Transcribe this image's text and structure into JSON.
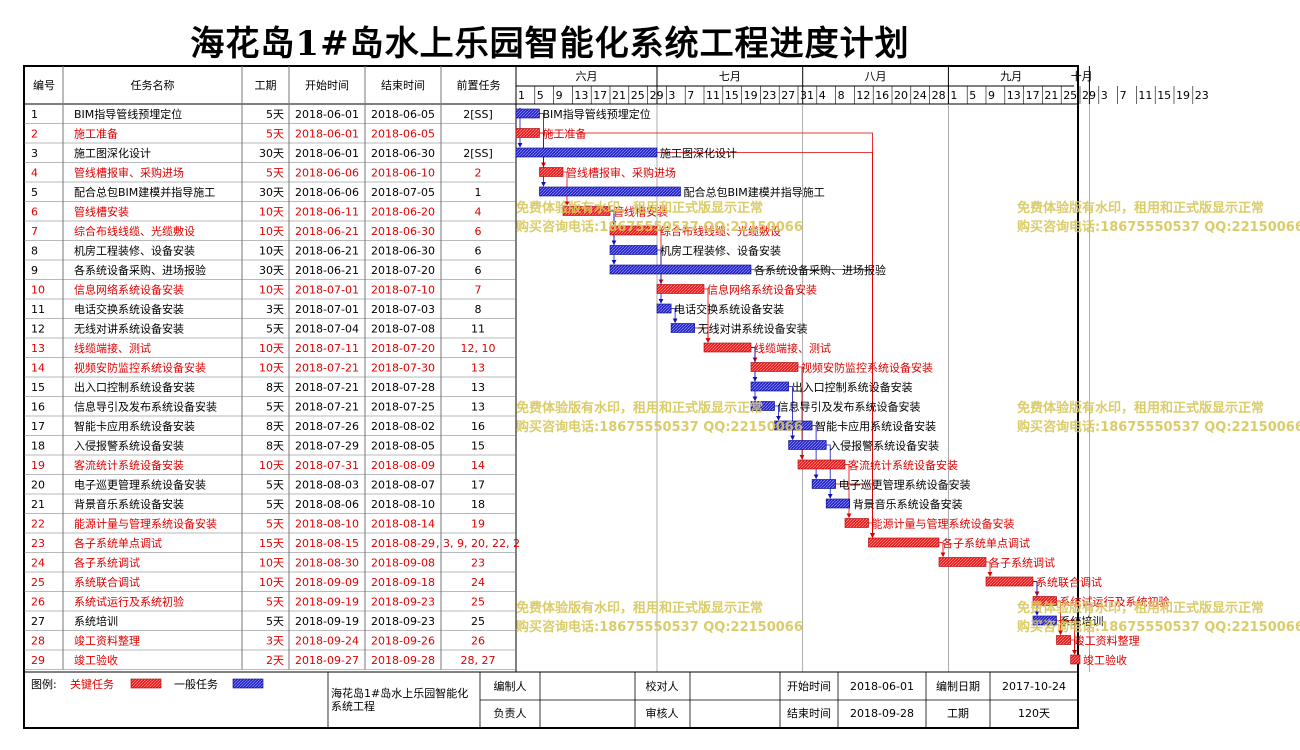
{
  "title": "海花岛1#岛水上乐园智能化系统工程进度计划",
  "colors": {
    "critical": "#e00000",
    "normal": "#1010c0",
    "watermark": "#d8c75a"
  },
  "columns": [
    "编号",
    "任务名称",
    "工期",
    "开始时间",
    "结束时间",
    "前置任务"
  ],
  "months": [
    "六月",
    "七月",
    "八月",
    "九月",
    "十月"
  ],
  "day_ticks": [
    [
      "1",
      "5",
      "9",
      "13",
      "17",
      "21",
      "25",
      "29"
    ],
    [
      "3",
      "7",
      "11",
      "15",
      "19",
      "23",
      "27",
      "31"
    ],
    [
      "4",
      "8",
      "12",
      "16",
      "20",
      "24",
      "28"
    ],
    [
      "1",
      "5",
      "9",
      "13",
      "17",
      "21",
      "25",
      "29"
    ],
    [
      "3",
      "7",
      "11",
      "15",
      "19",
      "23"
    ]
  ],
  "chart_data": {
    "type": "gantt",
    "timeline_start": "2018-06-01",
    "timeline_end": "2018-10-26",
    "tasks": [
      {
        "id": "1",
        "name": "BIM指导管线预埋定位",
        "duration": "5天",
        "start": "2018-06-01",
        "end": "2018-06-05",
        "pred": "2[SS]",
        "critical": false
      },
      {
        "id": "2",
        "name": "施工准备",
        "duration": "5天",
        "start": "2018-06-01",
        "end": "2018-06-05",
        "pred": "",
        "critical": true
      },
      {
        "id": "3",
        "name": "施工图深化设计",
        "duration": "30天",
        "start": "2018-06-01",
        "end": "2018-06-30",
        "pred": "2[SS]",
        "critical": false
      },
      {
        "id": "4",
        "name": "管线槽报审、采购进场",
        "duration": "5天",
        "start": "2018-06-06",
        "end": "2018-06-10",
        "pred": "2",
        "critical": true
      },
      {
        "id": "5",
        "name": "配合总包BIM建模并指导施工",
        "duration": "30天",
        "start": "2018-06-06",
        "end": "2018-07-05",
        "pred": "1",
        "critical": false
      },
      {
        "id": "6",
        "name": "管线槽安装",
        "duration": "10天",
        "start": "2018-06-11",
        "end": "2018-06-20",
        "pred": "4",
        "critical": true
      },
      {
        "id": "7",
        "name": "综合布线线缆、光缆敷设",
        "duration": "10天",
        "start": "2018-06-21",
        "end": "2018-06-30",
        "pred": "6",
        "critical": true
      },
      {
        "id": "8",
        "name": "机房工程装修、设备安装",
        "duration": "10天",
        "start": "2018-06-21",
        "end": "2018-06-30",
        "pred": "6",
        "critical": false
      },
      {
        "id": "9",
        "name": "各系统设备采购、进场报验",
        "duration": "30天",
        "start": "2018-06-21",
        "end": "2018-07-20",
        "pred": "6",
        "critical": false
      },
      {
        "id": "10",
        "name": "信息网络系统设备安装",
        "duration": "10天",
        "start": "2018-07-01",
        "end": "2018-07-10",
        "pred": "7",
        "critical": true
      },
      {
        "id": "11",
        "name": "电话交换系统设备安装",
        "duration": "3天",
        "start": "2018-07-01",
        "end": "2018-07-03",
        "pred": "8",
        "critical": false
      },
      {
        "id": "12",
        "name": "无线对讲系统设备安装",
        "duration": "5天",
        "start": "2018-07-04",
        "end": "2018-07-08",
        "pred": "11",
        "critical": false
      },
      {
        "id": "13",
        "name": "线缆端接、测试",
        "duration": "10天",
        "start": "2018-07-11",
        "end": "2018-07-20",
        "pred": "12, 10",
        "critical": true
      },
      {
        "id": "14",
        "name": "视频安防监控系统设备安装",
        "duration": "10天",
        "start": "2018-07-21",
        "end": "2018-07-30",
        "pred": "13",
        "critical": true
      },
      {
        "id": "15",
        "name": "出入口控制系统设备安装",
        "duration": "8天",
        "start": "2018-07-21",
        "end": "2018-07-28",
        "pred": "13",
        "critical": false
      },
      {
        "id": "16",
        "name": "信息导引及发布系统设备安装",
        "duration": "5天",
        "start": "2018-07-21",
        "end": "2018-07-25",
        "pred": "13",
        "critical": false
      },
      {
        "id": "17",
        "name": "智能卡应用系统设备安装",
        "duration": "8天",
        "start": "2018-07-26",
        "end": "2018-08-02",
        "pred": "16",
        "critical": false
      },
      {
        "id": "18",
        "name": "入侵报警系统设备安装",
        "duration": "8天",
        "start": "2018-07-29",
        "end": "2018-08-05",
        "pred": "15",
        "critical": false
      },
      {
        "id": "19",
        "name": "客流统计系统设备安装",
        "duration": "10天",
        "start": "2018-07-31",
        "end": "2018-08-09",
        "pred": "14",
        "critical": true
      },
      {
        "id": "20",
        "name": "电子巡更管理系统设备安装",
        "duration": "5天",
        "start": "2018-08-03",
        "end": "2018-08-07",
        "pred": "17",
        "critical": false
      },
      {
        "id": "21",
        "name": "背景音乐系统设备安装",
        "duration": "5天",
        "start": "2018-08-06",
        "end": "2018-08-10",
        "pred": "18",
        "critical": false
      },
      {
        "id": "22",
        "name": "能源计量与管理系统设备安装",
        "duration": "5天",
        "start": "2018-08-10",
        "end": "2018-08-14",
        "pred": "19",
        "critical": true
      },
      {
        "id": "23",
        "name": "各子系统单点调试",
        "duration": "15天",
        "start": "2018-08-15",
        "end": "2018-08-29",
        "pred": ", 3, 9, 20, 22, 2",
        "critical": true
      },
      {
        "id": "24",
        "name": "各子系统调试",
        "duration": "10天",
        "start": "2018-08-30",
        "end": "2018-09-08",
        "pred": "23",
        "critical": true
      },
      {
        "id": "25",
        "name": "系统联合调试",
        "duration": "10天",
        "start": "2018-09-09",
        "end": "2018-09-18",
        "pred": "24",
        "critical": true
      },
      {
        "id": "26",
        "name": "系统试运行及系统初验",
        "duration": "5天",
        "start": "2018-09-19",
        "end": "2018-09-23",
        "pred": "25",
        "critical": true
      },
      {
        "id": "27",
        "name": "系统培训",
        "duration": "5天",
        "start": "2018-09-19",
        "end": "2018-09-23",
        "pred": "25",
        "critical": false
      },
      {
        "id": "28",
        "name": "竣工资料整理",
        "duration": "3天",
        "start": "2018-09-24",
        "end": "2018-09-26",
        "pred": "26",
        "critical": true
      },
      {
        "id": "29",
        "name": "竣工验收",
        "duration": "2天",
        "start": "2018-09-27",
        "end": "2018-09-28",
        "pred": "28, 27",
        "critical": true
      }
    ]
  },
  "legend": {
    "label": "图例:",
    "critical": "关键任务",
    "normal": "一般任务"
  },
  "footer": {
    "project": "海花岛1#岛水上乐园智能化系统工程",
    "labels": [
      "编制人",
      "校对人",
      "开始时间",
      "编制日期",
      "负责人",
      "审核人",
      "结束时间",
      "工期"
    ],
    "start_value": "2018-06-01",
    "date_value": "2017-10-24",
    "end_value": "2018-09-28",
    "duration_value": "120天"
  },
  "watermark": [
    "免费体验版有水印，租用和正式版显示正常",
    "购买咨询电话:18675550537 QQ:22150066"
  ]
}
